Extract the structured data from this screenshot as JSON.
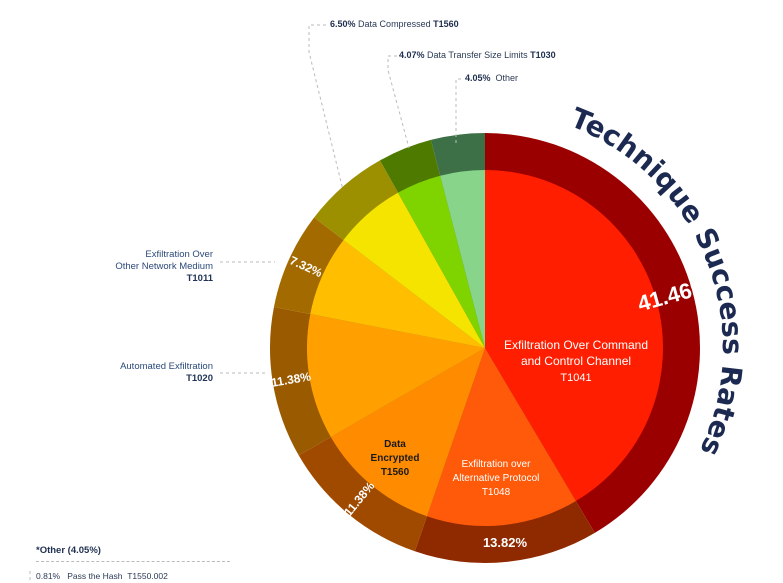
{
  "chart_data": {
    "type": "pie",
    "title": "Technique Success Rates",
    "slices": [
      {
        "label": "Exfiltration Over Command and Control Channel",
        "code": "T1041",
        "value": 41.46,
        "inner": "#ff1e00",
        "outer": "#9b0000",
        "pct_label": "41.46%"
      },
      {
        "label": "Exfiltration over Alternative Protocol",
        "code": "T1048",
        "value": 13.82,
        "inner": "#ff5a0a",
        "outer": "#8f2a00",
        "pct_label": "13.82%"
      },
      {
        "label": "Data Encrypted",
        "code": "T1560",
        "value": 11.38,
        "inner": "#ff8c00",
        "outer": "#a04a00",
        "pct_label": "11.38%"
      },
      {
        "label": "Automated Exfiltration",
        "code": "T1020",
        "value": 11.38,
        "inner": "#ffa000",
        "outer": "#9a5a00",
        "pct_label": "11.38%"
      },
      {
        "label": "Exfiltration Over Other Network Medium",
        "code": "T1011",
        "value": 7.32,
        "inner": "#ffbe00",
        "outer": "#a36a00",
        "pct_label": "7.32%"
      },
      {
        "label": "Data Compressed",
        "code": "T1560",
        "value": 6.5,
        "inner": "#f5e400",
        "outer": "#9c9000",
        "pct_label": "6.50%"
      },
      {
        "label": "Data Transfer Size Limits",
        "code": "T1030",
        "value": 4.07,
        "inner": "#7fd400",
        "outer": "#4e7a00",
        "pct_label": "4.07%"
      },
      {
        "label": "Other",
        "code": "",
        "value": 4.05,
        "inner": "#88d48a",
        "outer": "#3d7046",
        "pct_label": "4.05%"
      }
    ]
  },
  "labels": {
    "c2_line1": "Exfiltration Over Command",
    "c2_line2": "and Control Channel",
    "c2_code": "T1041",
    "alt_line1": "Exfiltration over",
    "alt_line2": "Alternative Protocol",
    "alt_code": "T1048",
    "enc_line1": "Data",
    "enc_line2": "Encrypted",
    "enc_code": "T1560",
    "other_net_line1": "Exfiltration Over",
    "other_net_line2": "Other Network Medium",
    "other_net_code": "T1011",
    "auto_line1": "Automated Exfiltration",
    "auto_code": "T1020",
    "compressed_pct": "6.50%",
    "compressed_label": "Data Compressed",
    "compressed_code": "T1560",
    "size_pct": "4.07%",
    "size_label": "Data Transfer Size Limits",
    "size_code": "T1030",
    "other_pct": "4.05%",
    "other_label": "Other"
  },
  "footnote": {
    "title": "*Other (4.05%)",
    "row_pct": "0.81%",
    "row_label": "Pass the Hash",
    "row_code": "T1550.002"
  },
  "colors": {
    "title": "#1c2a52",
    "leader": "#bbbbbb"
  }
}
